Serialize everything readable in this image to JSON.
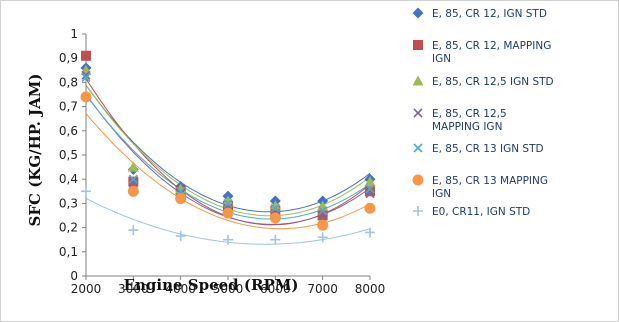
{
  "chart_data": {
    "type": "scatter",
    "title": "",
    "xlabel": "Engine Speed (RPM)",
    "ylabel": "SFC (KG/HP. JAM)",
    "xlim": [
      2000,
      8000
    ],
    "ylim": [
      0,
      1
    ],
    "xticks": [
      "2000",
      "3000",
      "4000",
      "5000",
      "6000",
      "7000",
      "8000"
    ],
    "yticks": [
      "0",
      "0,1",
      "0,2",
      "0,3",
      "0,4",
      "0,5",
      "0,6",
      "0,7",
      "0,8",
      "0,9",
      "1"
    ],
    "x": [
      2000,
      3000,
      4000,
      5000,
      6000,
      7000,
      8000
    ],
    "grid": false,
    "legend_position": "right",
    "trendline": "polynomial",
    "series": [
      {
        "name": "E, 85,  CR 12, IGN STD",
        "marker": "diamond",
        "color": "#4472c4",
        "values": [
          0.86,
          0.44,
          0.37,
          0.33,
          0.31,
          0.31,
          0.4
        ]
      },
      {
        "name": "E, 85,  CR 12, MAPPING IGN",
        "marker": "square",
        "color": "#c0504d",
        "values": [
          0.91,
          0.39,
          0.35,
          0.29,
          0.27,
          0.25,
          0.35
        ]
      },
      {
        "name": "E, 85,  CR 12,5 IGN STD",
        "marker": "triangle",
        "color": "#9bbb59",
        "values": [
          0.85,
          0.45,
          0.36,
          0.31,
          0.29,
          0.29,
          0.39
        ]
      },
      {
        "name": "E, 85,  CR 12,5 MAPPING IGN",
        "marker": "x",
        "color": "#8064a2",
        "values": [
          0.83,
          0.38,
          0.34,
          0.28,
          0.26,
          0.25,
          0.34
        ]
      },
      {
        "name": "E, 85,  CR 13 IGN STD",
        "marker": "x",
        "color": "#4bacc6",
        "values": [
          0.82,
          0.4,
          0.35,
          0.3,
          0.28,
          0.27,
          0.36
        ]
      },
      {
        "name": "E, 85,  CR 13 MAPPING IGN",
        "marker": "circle",
        "color": "#f79646",
        "values": [
          0.74,
          0.35,
          0.32,
          0.26,
          0.24,
          0.21,
          0.28
        ]
      },
      {
        "name": "E0, CR11, IGN STD",
        "marker": "plus",
        "color": "#9dc3e6",
        "values": [
          0.35,
          0.19,
          0.165,
          0.15,
          0.15,
          0.16,
          0.18
        ]
      }
    ]
  }
}
